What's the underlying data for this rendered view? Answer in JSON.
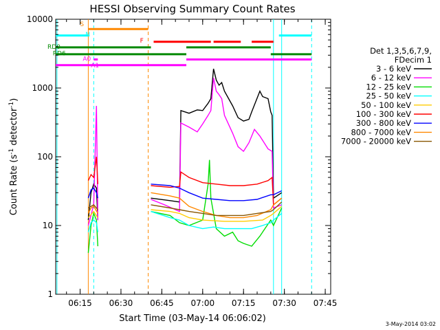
{
  "chart_data": {
    "type": "line",
    "title": "HESSI Observing Summary Count Rates",
    "xlabel": "Start Time (03-May-14 06:06:02)",
    "ylabel": "Count Rate (s⁻¹ detector⁻¹)",
    "ylabel_main": "Count Rate (s",
    "ylabel_sup1": "-1",
    "ylabel_mid": " detector",
    "ylabel_sup2": "-1",
    "ylabel_end": ")",
    "yscale": "log",
    "ylim": [
      1,
      10000
    ],
    "xlim": [
      "06:06:02",
      "07:47:00"
    ],
    "x_ticks": [
      {
        "t": "06:15",
        "label": "06:15"
      },
      {
        "t": "06:30",
        "label": "06:30"
      },
      {
        "t": "06:45",
        "label": "06:45"
      },
      {
        "t": "07:00",
        "label": "07:00"
      },
      {
        "t": "07:15",
        "label": "07:15"
      },
      {
        "t": "07:30",
        "label": "07:30"
      },
      {
        "t": "07:45",
        "label": "07:45"
      }
    ],
    "y_ticks": [
      {
        "v": 1,
        "label": "1"
      },
      {
        "v": 10,
        "label": "10"
      },
      {
        "v": 100,
        "label": "100"
      },
      {
        "v": 1000,
        "label": "1000"
      },
      {
        "v": 10000,
        "label": "10000"
      }
    ],
    "legend": {
      "position": "right",
      "header": [
        "Det 1,3,5,6,7,9,",
        "FDecim 1"
      ]
    },
    "series": [
      {
        "name": "3 - 6 keV",
        "color": "#000000",
        "segments": [
          [
            [
              "06:18:00",
              12
            ],
            [
              "06:19:00",
              30
            ],
            [
              "06:20:00",
              40
            ],
            [
              "06:21:00",
              35
            ],
            [
              "06:21:30",
              12
            ]
          ],
          [
            [
              "06:41:00",
              25
            ],
            [
              "06:48:00",
              23
            ],
            [
              "06:51:30",
              22
            ],
            [
              "06:52:00",
              470
            ],
            [
              "06:55:00",
              430
            ],
            [
              "06:58:00",
              480
            ],
            [
              "07:00:00",
              470
            ],
            [
              "07:02:00",
              600
            ],
            [
              "07:03:00",
              700
            ],
            [
              "07:04:00",
              1900
            ],
            [
              "07:05:00",
              1300
            ],
            [
              "07:06:00",
              1100
            ],
            [
              "07:07:00",
              1200
            ],
            [
              "07:08:00",
              900
            ],
            [
              "07:11:00",
              550
            ],
            [
              "07:13:00",
              370
            ],
            [
              "07:15:00",
              330
            ],
            [
              "07:17:00",
              350
            ],
            [
              "07:18:00",
              450
            ],
            [
              "07:21:00",
              900
            ],
            [
              "07:22:00",
              750
            ],
            [
              "07:24:00",
              700
            ],
            [
              "07:25:00",
              450
            ],
            [
              "07:25:30",
              400
            ],
            [
              "07:26:00",
              25
            ],
            [
              "07:29:00",
              30
            ]
          ]
        ]
      },
      {
        "name": "6 - 12 keV",
        "color": "#ff00ff",
        "segments": [
          [
            [
              "06:18:00",
              10
            ],
            [
              "06:20:00",
              20
            ],
            [
              "06:21:00",
              550
            ],
            [
              "06:21:30",
              12
            ]
          ],
          [
            [
              "06:41:00",
              24
            ],
            [
              "06:46:00",
              20
            ],
            [
              "06:51:30",
              16
            ],
            [
              "06:52:00",
              310
            ],
            [
              "06:55:00",
              270
            ],
            [
              "06:58:00",
              230
            ],
            [
              "07:00:00",
              300
            ],
            [
              "07:02:00",
              400
            ],
            [
              "07:03:00",
              470
            ],
            [
              "07:04:00",
              1400
            ],
            [
              "07:05:00",
              900
            ],
            [
              "07:06:00",
              800
            ],
            [
              "07:07:00",
              700
            ],
            [
              "07:08:00",
              400
            ],
            [
              "07:11:00",
              220
            ],
            [
              "07:13:00",
              140
            ],
            [
              "07:15:00",
              120
            ],
            [
              "07:17:00",
              160
            ],
            [
              "07:19:00",
              250
            ],
            [
              "07:21:00",
              200
            ],
            [
              "07:24:00",
              130
            ],
            [
              "07:25:30",
              120
            ],
            [
              "07:26:00",
              18
            ],
            [
              "07:29:00",
              20
            ]
          ]
        ]
      },
      {
        "name": "12 - 25 keV",
        "color": "#00dd00",
        "segments": [
          [
            [
              "06:18:00",
              4
            ],
            [
              "06:19:00",
              10
            ],
            [
              "06:20:00",
              15
            ],
            [
              "06:21:00",
              12
            ],
            [
              "06:21:30",
              5
            ]
          ],
          [
            [
              "06:41:00",
              16
            ],
            [
              "06:48:00",
              14
            ],
            [
              "06:51:30",
              11
            ],
            [
              "06:55:00",
              10
            ],
            [
              "07:00:00",
              12
            ],
            [
              "07:02:00",
              40
            ],
            [
              "07:02:30",
              90
            ],
            [
              "07:03:00",
              25
            ],
            [
              "07:05:00",
              9
            ],
            [
              "07:08:00",
              7
            ],
            [
              "07:11:00",
              8
            ],
            [
              "07:13:00",
              6
            ],
            [
              "07:15:00",
              5.5
            ],
            [
              "07:18:00",
              5
            ],
            [
              "07:21:00",
              7
            ],
            [
              "07:25:00",
              12
            ],
            [
              "07:26:00",
              10
            ],
            [
              "07:29:00",
              18
            ]
          ]
        ]
      },
      {
        "name": "25 - 50 keV",
        "color": "#00ffff",
        "segments": [
          [
            [
              "06:18:00",
              8
            ],
            [
              "06:19:00",
              11
            ],
            [
              "06:20:00",
              12
            ],
            [
              "06:21:00",
              11
            ],
            [
              "06:21:30",
              8
            ]
          ],
          [
            [
              "06:41:00",
              16
            ],
            [
              "06:48:00",
              13
            ],
            [
              "06:51:30",
              12
            ],
            [
              "06:55:00",
              10
            ],
            [
              "07:00:00",
              9
            ],
            [
              "07:04:00",
              9.5
            ],
            [
              "07:08:00",
              9
            ],
            [
              "07:13:00",
              9
            ],
            [
              "07:18:00",
              9
            ],
            [
              "07:22:00",
              10
            ],
            [
              "07:25:00",
              11
            ],
            [
              "07:26:00",
              12
            ],
            [
              "07:29:00",
              15
            ]
          ]
        ]
      },
      {
        "name": "50 - 100 keV",
        "color": "#ffcc00",
        "segments": [
          [
            [
              "06:18:00",
              13
            ],
            [
              "06:20:00",
              16
            ],
            [
              "06:21:30",
              13
            ]
          ],
          [
            [
              "06:41:00",
              17
            ],
            [
              "06:48:00",
              16
            ],
            [
              "06:51:30",
              15
            ],
            [
              "06:55:00",
              13
            ],
            [
              "07:00:00",
              12
            ],
            [
              "07:08:00",
              11.5
            ],
            [
              "07:15:00",
              11.5
            ],
            [
              "07:22:00",
              12
            ],
            [
              "07:25:00",
              14
            ],
            [
              "07:26:00",
              15
            ],
            [
              "07:29:00",
              19
            ]
          ]
        ]
      },
      {
        "name": "100 - 300 keV",
        "color": "#ff0000",
        "segments": [
          [
            [
              "06:18:00",
              45
            ],
            [
              "06:19:00",
              55
            ],
            [
              "06:20:00",
              50
            ],
            [
              "06:21:00",
              100
            ],
            [
              "06:21:30",
              40
            ]
          ],
          [
            [
              "06:41:00",
              38
            ],
            [
              "06:48:00",
              36
            ],
            [
              "06:51:30",
              37
            ],
            [
              "06:52:00",
              60
            ],
            [
              "06:55:00",
              50
            ],
            [
              "07:00:00",
              42
            ],
            [
              "07:05:00",
              40
            ],
            [
              "07:10:00",
              38
            ],
            [
              "07:15:00",
              38
            ],
            [
              "07:20:00",
              40
            ],
            [
              "07:24:00",
              45
            ],
            [
              "07:25:30",
              50
            ],
            [
              "07:26:00",
              20
            ],
            [
              "07:29:00",
              25
            ]
          ]
        ]
      },
      {
        "name": "300 - 800 keV",
        "color": "#0000ff",
        "segments": [
          [
            [
              "06:18:00",
              25
            ],
            [
              "06:19:00",
              33
            ],
            [
              "06:20:00",
              35
            ],
            [
              "06:21:00",
              30
            ],
            [
              "06:21:30",
              25
            ]
          ],
          [
            [
              "06:41:00",
              40
            ],
            [
              "06:48:00",
              38
            ],
            [
              "06:51:30",
              35
            ],
            [
              "06:55:00",
              30
            ],
            [
              "07:00:00",
              25
            ],
            [
              "07:05:00",
              24
            ],
            [
              "07:10:00",
              23
            ],
            [
              "07:15:00",
              23
            ],
            [
              "07:20:00",
              24
            ],
            [
              "07:25:00",
              28
            ],
            [
              "07:26:00",
              28
            ],
            [
              "07:29:00",
              32
            ]
          ]
        ]
      },
      {
        "name": "800 - 7000 keV",
        "color": "#ff8800",
        "segments": [
          [
            [
              "06:18:00",
              15
            ],
            [
              "06:19:00",
              18
            ],
            [
              "06:20:00",
              19
            ],
            [
              "06:21:30",
              15
            ]
          ],
          [
            [
              "06:41:00",
              30
            ],
            [
              "06:48:00",
              27
            ],
            [
              "06:51:30",
              25
            ],
            [
              "06:55:00",
              19
            ],
            [
              "07:00:00",
              16
            ],
            [
              "07:05:00",
              14
            ],
            [
              "07:10:00",
              13
            ],
            [
              "07:15:00",
              13
            ],
            [
              "07:20:00",
              14
            ],
            [
              "07:25:00",
              17
            ],
            [
              "07:26:00",
              20
            ],
            [
              "07:29:00",
              25
            ]
          ]
        ]
      },
      {
        "name": "7000 - 20000 keV",
        "color": "#885500",
        "segments": [
          [
            [
              "06:18:00",
              18
            ],
            [
              "06:19:00",
              19
            ],
            [
              "06:20:00",
              20
            ],
            [
              "06:21:30",
              17
            ]
          ],
          [
            [
              "06:41:00",
              20
            ],
            [
              "06:48:00",
              18
            ],
            [
              "06:51:30",
              17
            ],
            [
              "06:55:00",
              16
            ],
            [
              "07:00:00",
              15
            ],
            [
              "07:05:00",
              14
            ],
            [
              "07:10:00",
              14
            ],
            [
              "07:15:00",
              14
            ],
            [
              "07:20:00",
              15
            ],
            [
              "07:25:00",
              16
            ],
            [
              "07:26:00",
              17
            ],
            [
              "07:29:00",
              22
            ]
          ]
        ]
      }
    ],
    "flag_bars": [
      {
        "label": "S",
        "color": "#ff8800",
        "y": 7200,
        "segments": [
          [
            "06:18:00",
            "06:40:00"
          ]
        ]
      },
      {
        "label": "N",
        "color": "#00ffff",
        "y": 5800,
        "segments": [
          [
            "06:06:02",
            "06:18:00"
          ],
          [
            "07:28:00",
            "07:40:00"
          ]
        ]
      },
      {
        "label": "F",
        "color": "#ff0000",
        "y": 4700,
        "segments": [
          [
            "06:42:00",
            "07:03:00"
          ],
          [
            "07:04:00",
            "07:14:00"
          ],
          [
            "07:18:00",
            "07:26:00"
          ]
        ]
      },
      {
        "label": "RD0",
        "color": "#008800",
        "y": 3900,
        "segments": [
          [
            "06:06:02",
            "06:41:00"
          ],
          [
            "06:54:00",
            "07:25:00"
          ]
        ]
      },
      {
        "label": "RD6",
        "color": "#008800",
        "y": 3100,
        "segments": [
          [
            "06:06:02",
            "06:41:00"
          ],
          [
            "06:41:00",
            "06:54:00"
          ],
          [
            "07:25:00",
            "07:40:00"
          ]
        ]
      },
      {
        "label": "A0",
        "color": "#ff00ff",
        "y": 2600,
        "segments": [
          [
            "06:20:00",
            "06:21:30"
          ],
          [
            "06:54:00",
            "07:40:00"
          ]
        ]
      },
      {
        "label": "A1",
        "color": "#ff00ff",
        "y": 2150,
        "segments": [
          [
            "06:06:02",
            "06:54:00"
          ]
        ]
      }
    ],
    "flag_labels": [
      {
        "text": "S",
        "x": "06:18:00",
        "y": 8500,
        "color": "#ff8800"
      },
      {
        "text": "N",
        "x": "06:20:00",
        "y": 6000,
        "color": "#00ffff"
      },
      {
        "text": "F",
        "x": "06:40:00",
        "y": 4900,
        "color": "#ff0000"
      },
      {
        "text": "RD0",
        "x": "06:06:02",
        "y": 4000,
        "color": "#008800"
      },
      {
        "text": "RD6",
        "x": "06:08:00",
        "y": 3200,
        "color": "#008800"
      },
      {
        "text": "A0",
        "x": "06:19:00",
        "y": 2650,
        "color": "#ff00ff"
      },
      {
        "text": "A1",
        "x": "06:22:00",
        "y": 2150,
        "color": "#ff00ff"
      }
    ],
    "vertical_lines": [
      {
        "t": "06:06:30",
        "color": "#00ffff",
        "style": "solid"
      },
      {
        "t": "06:18:00",
        "color": "#ff8800",
        "style": "solid"
      },
      {
        "t": "06:20:00",
        "color": "#00ffff",
        "style": "dashed"
      },
      {
        "t": "06:40:00",
        "color": "#ff8800",
        "style": "dashed"
      },
      {
        "t": "07:26:00",
        "color": "#00ffff",
        "style": "solid"
      },
      {
        "t": "07:29:00",
        "color": "#00ffff",
        "style": "solid"
      },
      {
        "t": "07:40:00",
        "color": "#00ffff",
        "style": "dashed"
      }
    ],
    "timestamp": "3-May-2014 03:02"
  }
}
